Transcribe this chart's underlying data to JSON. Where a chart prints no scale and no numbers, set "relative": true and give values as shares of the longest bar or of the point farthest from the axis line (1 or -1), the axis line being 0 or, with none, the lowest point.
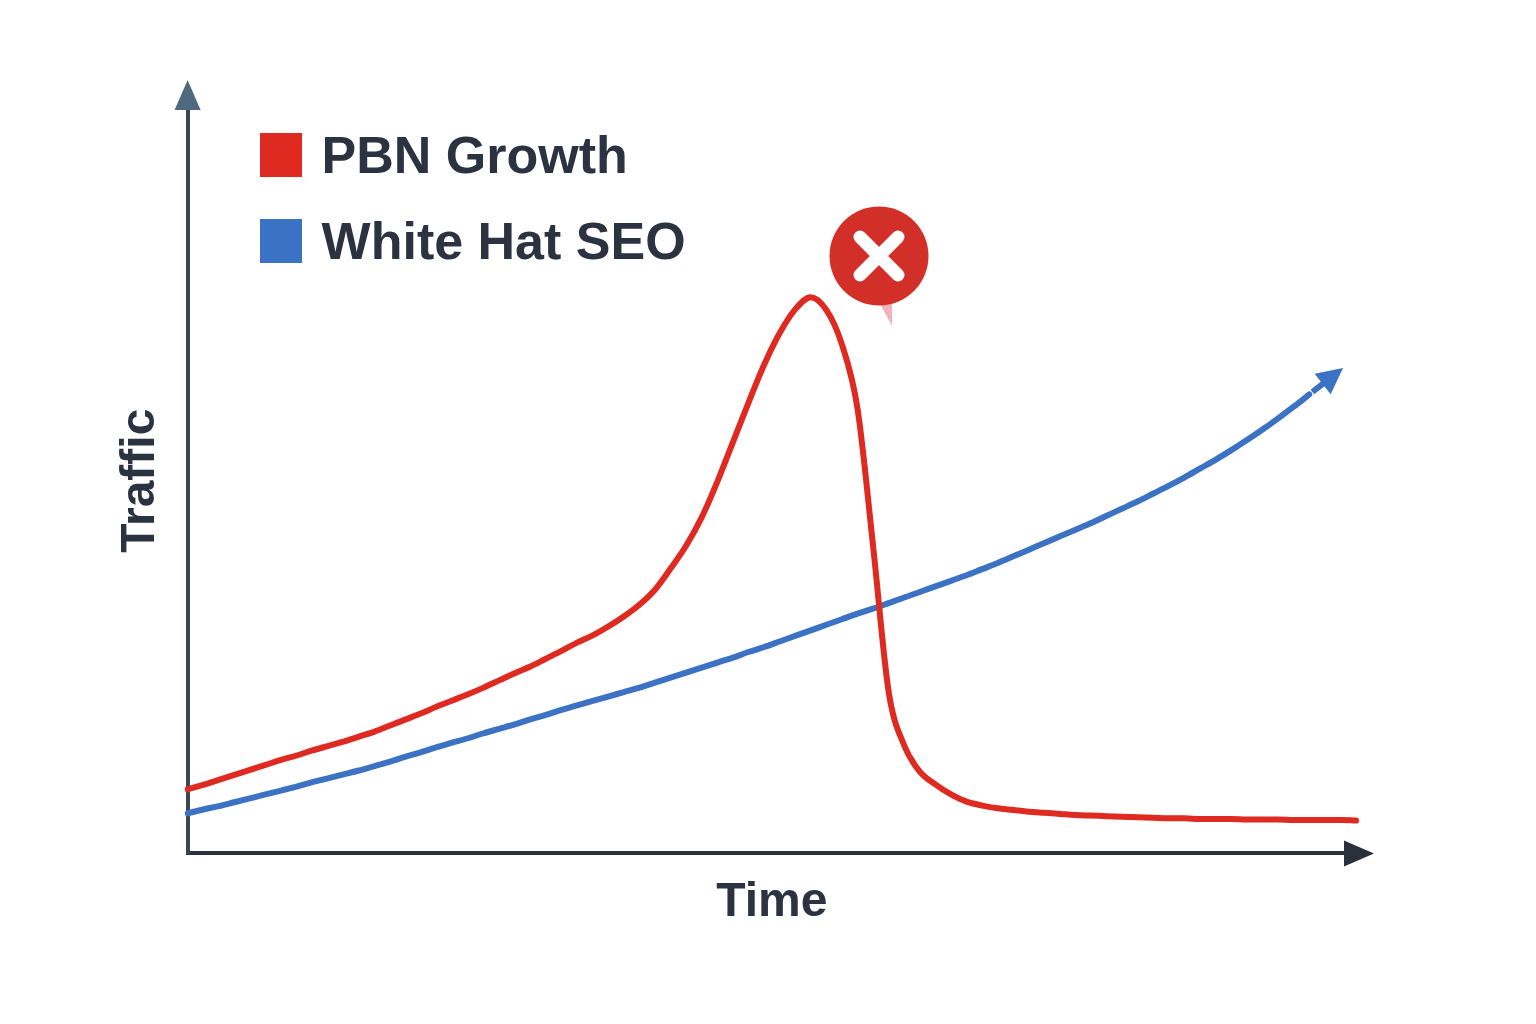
{
  "chart_data": {
    "type": "line",
    "xlabel": "Time",
    "ylabel": "Traffic",
    "relative": true,
    "legend": "top left",
    "categories": [
      null,
      null,
      null,
      null,
      null,
      null,
      null,
      null,
      null,
      null,
      null,
      null,
      null,
      null,
      null,
      null,
      null,
      null,
      null,
      null,
      null,
      null,
      null,
      null,
      null,
      null,
      null,
      null,
      null,
      null,
      null,
      null,
      null,
      null,
      null,
      null,
      null,
      null,
      null,
      null,
      null,
      null,
      null,
      null,
      null,
      null,
      null,
      null,
      null,
      null,
      null,
      null,
      null,
      null,
      null,
      null,
      null,
      null,
      null,
      null,
      null,
      null,
      null,
      null,
      null,
      null,
      null,
      null,
      null,
      null,
      null,
      null,
      null,
      null,
      null,
      null
    ],
    "series": [
      {
        "name": "PBN Growth",
        "color": "#de2a20",
        "values": [
          0.115,
          0.123,
          0.132,
          0.141,
          0.15,
          0.159,
          0.168,
          0.176,
          0.185,
          0.193,
          0.201,
          0.21,
          0.219,
          0.23,
          0.241,
          0.252,
          0.264,
          0.275,
          0.286,
          0.298,
          0.311,
          0.324,
          0.336,
          0.35,
          0.364,
          0.379,
          0.392,
          0.408,
          0.426,
          0.447,
          0.474,
          0.512,
          0.553,
          0.604,
          0.668,
          0.739,
          0.81,
          0.878,
          0.935,
          0.978,
          1,
          0.977,
          0.915,
          0.8,
          0.553,
          0.291,
          0.194,
          0.147,
          0.124,
          0.106,
          0.093,
          0.086,
          0.081,
          0.078,
          0.075,
          0.073,
          0.071,
          0.069,
          0.068,
          0.067,
          0.066,
          0.065,
          0.064,
          0.063,
          0.063,
          0.062,
          0.062,
          0.062,
          0.061,
          0.061,
          0.061,
          0.06,
          0.06,
          0.06,
          0.06,
          0.059
        ]
      },
      {
        "name": "White Hat SEO",
        "color": "#3b72c4",
        "values": [
          0.072,
          0.079,
          0.085,
          0.092,
          0.099,
          0.106,
          0.113,
          0.12,
          0.128,
          0.135,
          0.142,
          0.149,
          0.157,
          0.165,
          0.174,
          0.182,
          0.191,
          0.199,
          0.207,
          0.216,
          0.224,
          0.232,
          0.241,
          0.249,
          0.258,
          0.266,
          0.274,
          0.282,
          0.29,
          0.298,
          0.307,
          0.316,
          0.325,
          0.334,
          0.343,
          0.352,
          0.362,
          0.371,
          0.381,
          0.391,
          0.401,
          0.411,
          0.421,
          0.431,
          0.44,
          0.45,
          0.46,
          0.47,
          0.48,
          0.49,
          0.5,
          0.511,
          0.522,
          0.534,
          0.546,
          0.558,
          0.57,
          0.582,
          0.594,
          0.607,
          0.62,
          0.633,
          0.647,
          0.661,
          0.676,
          0.692,
          0.708,
          0.725,
          0.743,
          0.762,
          0.782,
          0.803,
          0.825,
          null,
          null,
          null
        ]
      }
    ]
  }
}
